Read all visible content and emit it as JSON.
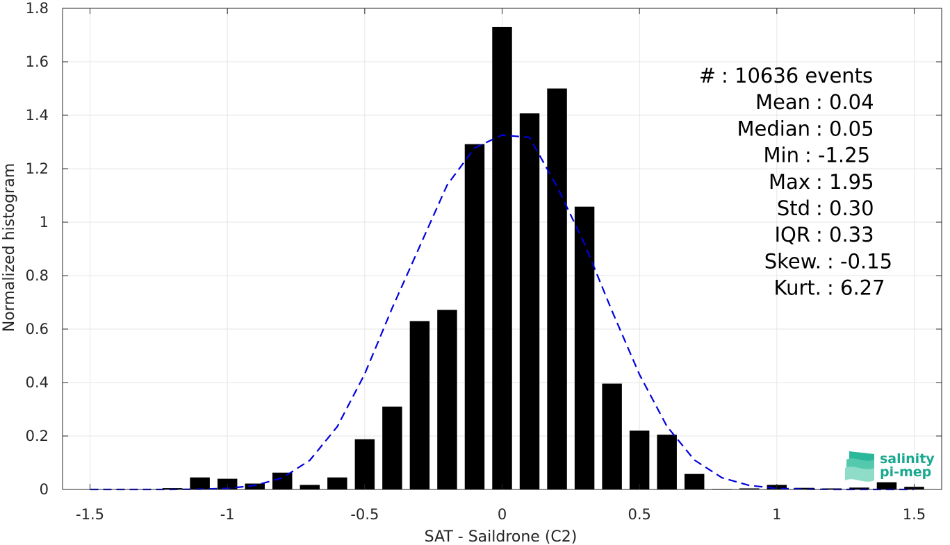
{
  "chart_data": {
    "type": "bar",
    "xlabel": "SAT - Saildrone (C2)",
    "ylabel": "Normalized histogram",
    "xlim": [
      -1.6,
      1.6
    ],
    "ylim": [
      0,
      1.8
    ],
    "x_ticks": [
      -1.5,
      -1,
      -0.5,
      0,
      0.5,
      1,
      1.5
    ],
    "x_tick_labels": [
      "-1.5",
      "-1",
      "-0.5",
      "0",
      "0.5",
      "1",
      "1.5"
    ],
    "y_ticks": [
      0,
      0.2,
      0.4,
      0.6,
      0.8,
      1,
      1.2,
      1.4,
      1.6,
      1.8
    ],
    "y_tick_labels": [
      "0",
      "0.2",
      "0.4",
      "0.6",
      "0.8",
      "1",
      "1.2",
      "1.4",
      "1.6",
      "1.8"
    ],
    "grid": true,
    "bar_width": 0.072,
    "bin_centers": [
      -1.4,
      -1.3,
      -1.2,
      -1.1,
      -1.0,
      -0.9,
      -0.8,
      -0.7,
      -0.6,
      -0.5,
      -0.4,
      -0.3,
      -0.2,
      -0.1,
      0.0,
      0.1,
      0.2,
      0.3,
      0.4,
      0.5,
      0.6,
      0.7,
      0.8,
      0.9,
      1.0,
      1.1,
      1.2,
      1.3,
      1.4,
      1.5
    ],
    "values": [
      0.0,
      0.0,
      0.005,
      0.045,
      0.04,
      0.022,
      0.063,
      0.017,
      0.045,
      0.188,
      0.31,
      0.63,
      0.672,
      1.292,
      1.73,
      1.407,
      1.5,
      1.058,
      0.396,
      0.22,
      0.205,
      0.058,
      0.002,
      0.004,
      0.017,
      0.006,
      0.004,
      0.007,
      0.027,
      0.01
    ],
    "bar_color": "#000000",
    "fit_curve": {
      "style": "dashed",
      "color": "#0000DD",
      "x": [
        -1.5,
        -1.4,
        -1.3,
        -1.2,
        -1.1,
        -1.0,
        -0.9,
        -0.8,
        -0.7,
        -0.6,
        -0.5,
        -0.4,
        -0.3,
        -0.2,
        -0.1,
        0.0,
        0.1,
        0.2,
        0.3,
        0.4,
        0.5,
        0.6,
        0.7,
        0.8,
        0.9,
        1.0,
        1.1,
        1.2,
        1.3,
        1.4,
        1.5
      ],
      "y": [
        0.0,
        0.0,
        0.0,
        0.0,
        0.001,
        0.004,
        0.015,
        0.043,
        0.109,
        0.235,
        0.432,
        0.679,
        0.909,
        1.139,
        1.278,
        1.326,
        1.317,
        1.133,
        0.919,
        0.668,
        0.43,
        0.236,
        0.11,
        0.044,
        0.015,
        0.004,
        0.001,
        0.0,
        0.0,
        0.0,
        0.0
      ]
    },
    "stats": [
      {
        "label": "#  ",
        "value": ": 10636 events"
      },
      {
        "label": "Mean",
        "value": ": 0.04"
      },
      {
        "label": "Median",
        "value": ": 0.05"
      },
      {
        "label": "Min",
        "value": ": -1.25"
      },
      {
        "label": "Max",
        "value": ": 1.95"
      },
      {
        "label": "Std",
        "value": ": 0.30"
      },
      {
        "label": "IQR",
        "value": ": 0.33"
      },
      {
        "label": "Skew.",
        "value": ": -0.15"
      },
      {
        "label": "Kurt.",
        "value": ": 6.27"
      }
    ]
  },
  "logo": {
    "line1": "salinity",
    "line2": "pi-mep",
    "color": "#1aa98f"
  }
}
